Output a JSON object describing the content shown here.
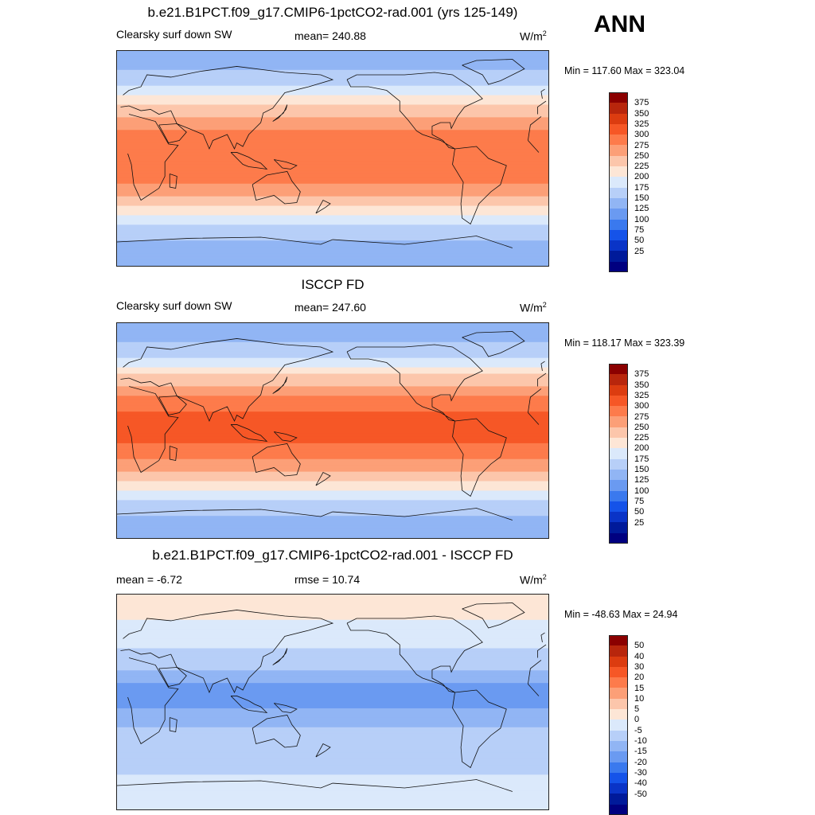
{
  "header": {
    "season": "ANN"
  },
  "colorbar_main": {
    "colors": [
      "#8b0000",
      "#b8260c",
      "#dc3c10",
      "#f65726",
      "#fd7b4b",
      "#fc9f77",
      "#fcc6ab",
      "#fde6d6",
      "#dbe9fb",
      "#b7cff8",
      "#91b5f4",
      "#6a9af1",
      "#3a79ee",
      "#1553e9",
      "#0a34c7",
      "#001a9a",
      "#000080"
    ],
    "ticks": [
      "375",
      "350",
      "325",
      "300",
      "275",
      "250",
      "225",
      "200",
      "175",
      "150",
      "125",
      "100",
      "75",
      "50",
      "25"
    ]
  },
  "colorbar_diff": {
    "colors": [
      "#8b0000",
      "#b8260c",
      "#dc3c10",
      "#f65726",
      "#fd7b4b",
      "#fc9f77",
      "#fcc6ab",
      "#fde6d6",
      "#dbe9fb",
      "#b7cff8",
      "#91b5f4",
      "#6a9af1",
      "#3a79ee",
      "#1553e9",
      "#0a34c7",
      "#001a9a",
      "#000080"
    ],
    "ticks": [
      "50",
      "40",
      "30",
      "20",
      "15",
      "10",
      "5",
      "0",
      "-5",
      "-10",
      "-15",
      "-20",
      "-30",
      "-40",
      "-50"
    ]
  },
  "chart_data": [
    {
      "type": "heatmap",
      "title": "b.e21.B1PCT.f09_g17.CMIP6-1pctCO2-rad.001 (yrs 125-149)",
      "left_label": "Clearsky surf down SW",
      "stat_label": "mean= 240.88",
      "units_base": "W/m",
      "units_exp": "2",
      "minmax": "Min = 117.60 Max = 323.04",
      "zonal_profile": {
        "lat": [
          90,
          75,
          60,
          45,
          30,
          15,
          0,
          -15,
          -30,
          -45,
          -60,
          -75,
          -90
        ],
        "value": [
          130,
          150,
          175,
          225,
          265,
          285,
          285,
          285,
          260,
          210,
          165,
          140,
          140
        ]
      }
    },
    {
      "type": "heatmap",
      "title": "ISCCP FD",
      "left_label": "Clearsky surf down SW",
      "stat_label": "mean= 247.60",
      "units_base": "W/m",
      "units_exp": "2",
      "minmax": "Min = 118.17 Max = 323.39",
      "zonal_profile": {
        "lat": [
          90,
          75,
          60,
          45,
          30,
          15,
          0,
          -15,
          -30,
          -45,
          -60,
          -75,
          -90
        ],
        "value": [
          125,
          145,
          180,
          230,
          275,
          300,
          310,
          295,
          265,
          215,
          170,
          145,
          145
        ]
      }
    },
    {
      "type": "heatmap",
      "title": "b.e21.B1PCT.f09_g17.CMIP6-1pctCO2-rad.001 - ISCCP FD",
      "left_label": "mean =  -6.72",
      "stat_label": "rmse =  10.74",
      "units_base": "W/m",
      "units_exp": "2",
      "minmax": "Min = -48.63 Max =  24.94",
      "zonal_profile": {
        "lat": [
          90,
          75,
          60,
          45,
          30,
          15,
          0,
          -15,
          -30,
          -45,
          -60,
          -75,
          -90
        ],
        "value": [
          3,
          2,
          -3,
          -5,
          -8,
          -15,
          -17,
          -12,
          -8,
          -7,
          -5,
          -3,
          -3
        ]
      }
    }
  ]
}
